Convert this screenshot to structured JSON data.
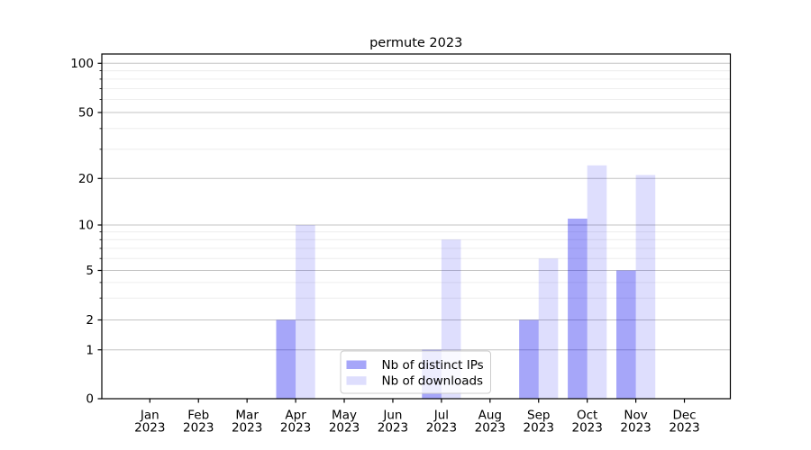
{
  "chart_data": {
    "type": "bar",
    "title": "permute 2023",
    "categories": [
      "Jan",
      "Feb",
      "Mar",
      "Apr",
      "May",
      "Jun",
      "Jul",
      "Aug",
      "Sep",
      "Oct",
      "Nov",
      "Dec"
    ],
    "category_year": "2023",
    "series": [
      {
        "name": "Nb of distinct IPs",
        "color": "rgba(0,0,238,0.35)",
        "values": [
          0,
          0,
          0,
          2,
          0,
          0,
          1,
          0,
          2,
          11,
          5,
          0
        ]
      },
      {
        "name": "Nb of downloads",
        "color": "rgba(0,0,238,0.13)",
        "values": [
          0,
          0,
          0,
          10,
          0,
          0,
          8,
          0,
          6,
          24,
          21,
          0
        ]
      }
    ],
    "yscale": "symlog-like",
    "ylim": [
      0,
      100
    ],
    "y_major_ticks": [
      0,
      1,
      2,
      5,
      10,
      20,
      50,
      100
    ],
    "y_minor_ticks": [
      3,
      4,
      6,
      7,
      8,
      9,
      30,
      40,
      60,
      70,
      80,
      90
    ],
    "grid": "major and minor horizontal gridlines",
    "legend_position": "lower center"
  },
  "colors": {
    "background": "#ffffff",
    "spine": "#000000",
    "grid_major": "#c3c3c3",
    "grid_minor": "#ebebeb",
    "legend_border": "#cccccc",
    "legend_background": "#ffffff",
    "text": "#000000"
  }
}
